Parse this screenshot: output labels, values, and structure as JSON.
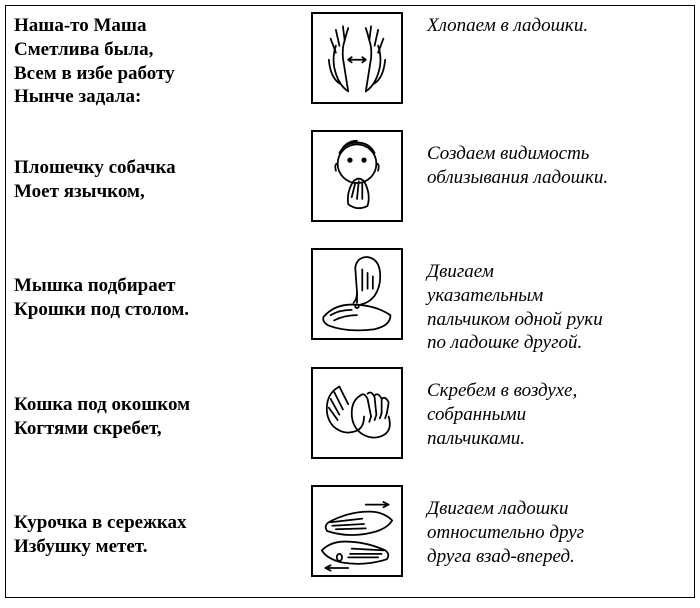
{
  "rows": [
    {
      "rhyme": "Наша-то Маша\nСметлива была,\nВсем в избе работу\nНынче задала:",
      "desc": "Хлопаем в ладошки.",
      "icon": "two-hands-clap"
    },
    {
      "rhyme": "Плошечку собачка\nМоет язычком,",
      "desc": "Создаем видимость\nоблизывания ладошки.",
      "icon": "face-lick-palm"
    },
    {
      "rhyme": "Мышка подбирает\nКрошки под столом.",
      "desc": "Двигаем\nуказательным\nпальчиком одной руки\nпо ладошке другой.",
      "icon": "finger-on-palm"
    },
    {
      "rhyme": "Кошка под окошком\nКогтями скребет,",
      "desc": "Скребем в воздухе,\nсобранными\nпальчиками.",
      "icon": "scratch-claws"
    },
    {
      "rhyme": "Курочка в сережках\nИзбушку метет.",
      "desc": "Двигаем ладошки\nотносительно друг\nдруга взад-вперед.",
      "icon": "palms-rub"
    }
  ]
}
